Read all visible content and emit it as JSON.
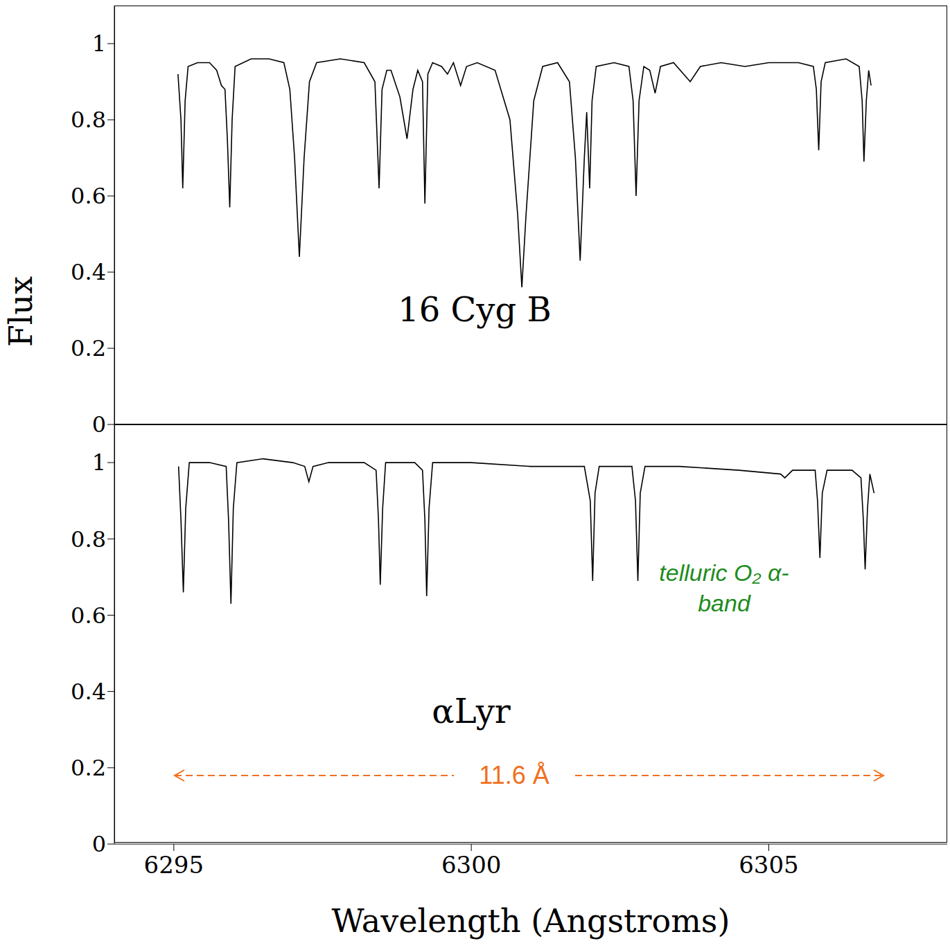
{
  "chart_data": [
    {
      "type": "line",
      "series": [
        {
          "name": "16 Cyg B",
          "color": "#000000",
          "values": [
            0.92,
            0.8,
            0.62,
            0.85,
            0.94,
            0.95,
            0.95,
            0.93,
            0.89,
            0.88,
            0.75,
            0.57,
            0.8,
            0.94,
            0.96,
            0.96,
            0.95,
            0.88,
            0.7,
            0.44,
            0.7,
            0.9,
            0.95,
            0.96,
            0.95,
            0.9,
            0.62,
            0.88,
            0.93,
            0.93,
            0.86,
            0.75,
            0.88,
            0.93,
            0.9,
            0.58,
            0.92,
            0.95,
            0.94,
            0.92,
            0.95,
            0.89,
            0.94,
            0.95,
            0.93,
            0.8,
            0.55,
            0.36,
            0.55,
            0.85,
            0.94,
            0.95,
            0.9,
            0.7,
            0.43,
            0.7,
            0.82,
            0.7,
            0.62,
            0.85,
            0.94,
            0.95,
            0.94,
            0.85,
            0.6,
            0.85,
            0.94,
            0.93,
            0.87,
            0.94,
            0.95,
            0.9,
            0.94,
            0.95,
            0.94,
            0.95,
            0.95,
            0.94,
            0.88,
            0.72,
            0.9,
            0.95,
            0.96,
            0.94,
            0.85,
            0.69,
            0.85,
            0.93,
            0.89
          ]
        }
      ],
      "x": [
        6295.07,
        6295.12,
        6295.15,
        6295.19,
        6295.24,
        6295.4,
        6295.6,
        6295.72,
        6295.8,
        6295.86,
        6295.9,
        6295.94,
        6295.98,
        6296.03,
        6296.3,
        6296.6,
        6296.85,
        6296.95,
        6297.03,
        6297.11,
        6297.19,
        6297.28,
        6297.4,
        6297.8,
        6298.2,
        6298.38,
        6298.45,
        6298.5,
        6298.58,
        6298.65,
        6298.8,
        6298.92,
        6299.02,
        6299.1,
        6299.18,
        6299.22,
        6299.27,
        6299.35,
        6299.5,
        6299.6,
        6299.7,
        6299.82,
        6299.92,
        6300.1,
        6300.4,
        6300.65,
        6300.78,
        6300.85,
        6300.92,
        6301.05,
        6301.2,
        6301.45,
        6301.65,
        6301.75,
        6301.83,
        6301.9,
        6301.94,
        6301.97,
        6301.99,
        6302.03,
        6302.1,
        6302.4,
        6302.65,
        6302.72,
        6302.77,
        6302.82,
        6302.9,
        6303.0,
        6303.09,
        6303.18,
        6303.4,
        6303.68,
        6303.85,
        6304.2,
        6304.6,
        6305.0,
        6305.5,
        6305.75,
        6305.8,
        6305.84,
        6305.88,
        6305.95,
        6306.3,
        6306.52,
        6306.57,
        6306.6,
        6306.64,
        6306.68,
        6306.72
      ],
      "xlim": [
        6294,
        6308
      ],
      "xticks": [
        6295,
        6300,
        6305
      ],
      "ylim": [
        0,
        1.1
      ],
      "yticks": [
        0,
        0.2,
        0.4,
        0.6,
        0.8,
        1
      ],
      "ylabel": "Flux",
      "tick_labels": "y"
    },
    {
      "type": "line",
      "series": [
        {
          "name": "αLyr",
          "color": "#000000",
          "values": [
            0.99,
            0.85,
            0.66,
            0.88,
            1.0,
            1.0,
            0.99,
            0.85,
            0.63,
            0.88,
            1.0,
            1.01,
            1.0,
            0.99,
            0.95,
            0.99,
            1.0,
            1.0,
            0.98,
            0.85,
            0.68,
            0.88,
            1.0,
            1.0,
            0.98,
            0.85,
            0.65,
            0.88,
            1.0,
            1.0,
            0.99,
            0.99,
            0.9,
            0.69,
            0.92,
            0.99,
            0.99,
            0.9,
            0.69,
            0.92,
            0.99,
            0.99,
            0.98,
            0.97,
            0.96,
            0.98,
            0.98,
            0.9,
            0.75,
            0.92,
            0.98,
            0.98,
            0.96,
            0.85,
            0.72,
            0.88,
            0.97,
            0.92
          ]
        }
      ],
      "x": [
        6295.08,
        6295.12,
        6295.16,
        6295.2,
        6295.26,
        6295.6,
        6295.88,
        6295.92,
        6295.96,
        6296.0,
        6296.06,
        6296.5,
        6297.0,
        6297.2,
        6297.27,
        6297.34,
        6297.6,
        6298.2,
        6298.4,
        6298.44,
        6298.47,
        6298.51,
        6298.56,
        6299.05,
        6299.18,
        6299.22,
        6299.25,
        6299.29,
        6299.35,
        6300.0,
        6301.0,
        6301.9,
        6302.0,
        6302.04,
        6302.08,
        6302.15,
        6302.7,
        6302.76,
        6302.8,
        6302.84,
        6302.92,
        6303.5,
        6304.5,
        6305.2,
        6305.27,
        6305.4,
        6305.78,
        6305.82,
        6305.86,
        6305.9,
        6305.98,
        6306.4,
        6306.55,
        6306.59,
        6306.62,
        6306.66,
        6306.7,
        6306.77
      ],
      "xlim": [
        6294,
        6308
      ],
      "xticks": [
        6295,
        6300,
        6305
      ],
      "ylim": [
        0,
        1.1
      ],
      "yticks": [
        0,
        0.2,
        0.4,
        0.6,
        0.8,
        1
      ],
      "xlabel": "Wavelength (Angstroms)",
      "annotations": [
        {
          "text": "telluric O₂ α-band",
          "color": "#1e8c1e"
        },
        {
          "text": "11.6 Å",
          "color": "#f07020"
        }
      ]
    }
  ]
}
